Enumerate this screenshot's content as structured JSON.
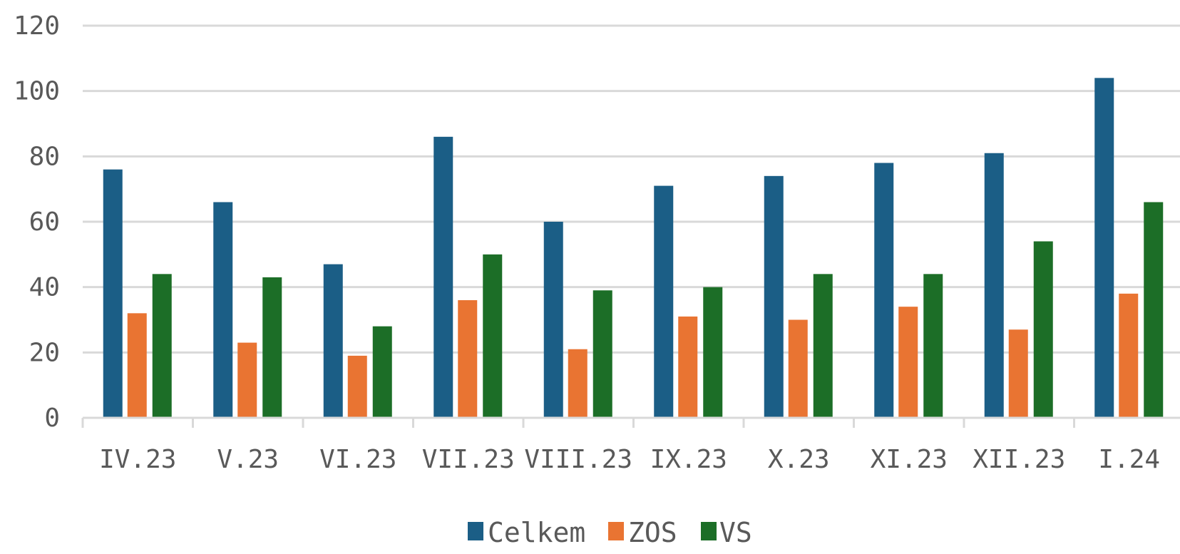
{
  "chart_data": {
    "type": "bar",
    "categories": [
      "IV.23",
      "V.23",
      "VI.23",
      "VII.23",
      "VIII.23",
      "IX.23",
      "X.23",
      "XI.23",
      "XII.23",
      "I.24"
    ],
    "series": [
      {
        "name": "Celkem",
        "color": "#1b5e86",
        "values": [
          76,
          66,
          47,
          86,
          60,
          71,
          74,
          78,
          81,
          104
        ]
      },
      {
        "name": "ZOS",
        "color": "#e97432",
        "values": [
          32,
          23,
          19,
          36,
          21,
          31,
          30,
          34,
          27,
          38
        ]
      },
      {
        "name": "VS",
        "color": "#1c6e27",
        "values": [
          44,
          43,
          28,
          50,
          39,
          40,
          44,
          44,
          54,
          66
        ]
      }
    ],
    "yticks": [
      "0",
      "20",
      "40",
      "60",
      "80",
      "100",
      "120"
    ],
    "ylim": [
      0,
      120
    ],
    "grid": true,
    "legend_position": "bottom",
    "title": "",
    "xlabel": "",
    "ylabel": ""
  }
}
